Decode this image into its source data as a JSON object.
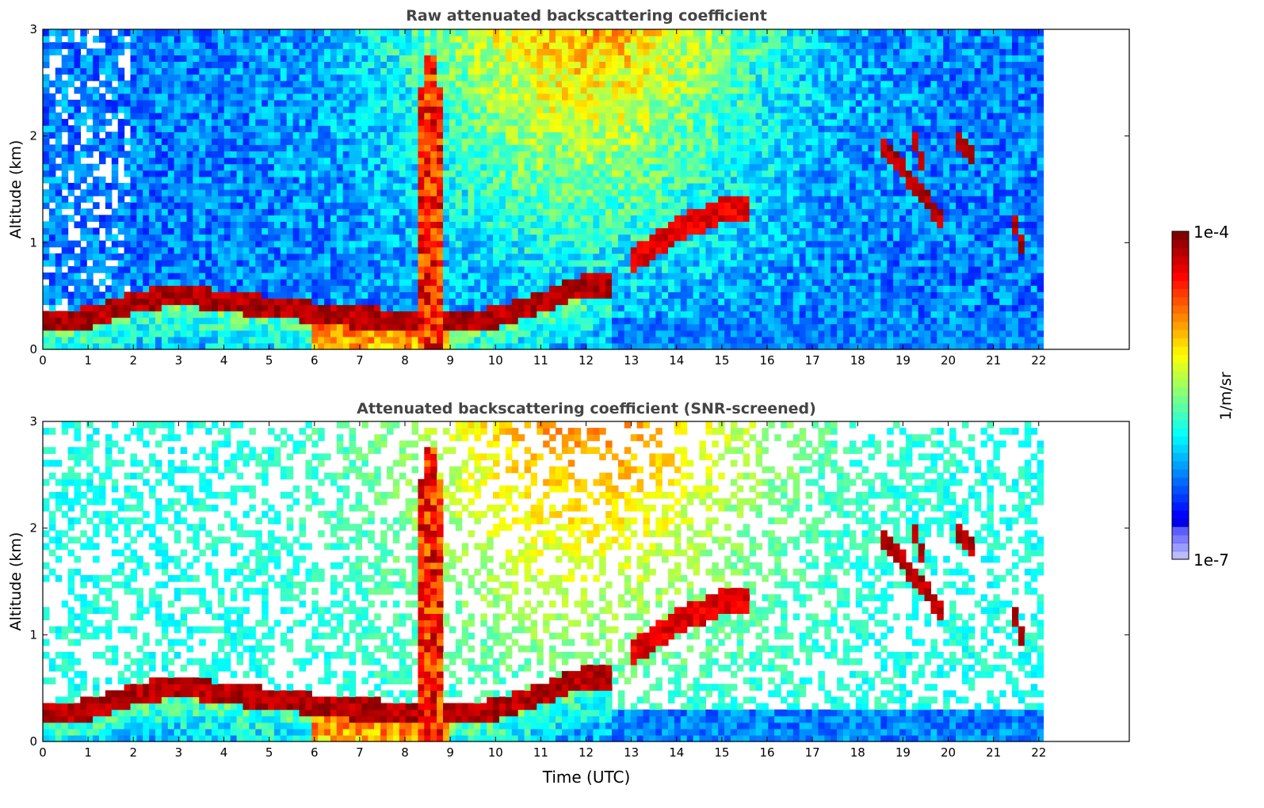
{
  "chart_data": [
    {
      "type": "heatmap",
      "title": "Raw attenuated backscattering coefficient",
      "ylabel": "Altitude (km)",
      "xlabel": "",
      "xlim": [
        0,
        24
      ],
      "ylim": [
        0,
        3
      ],
      "x_ticks": [
        "0",
        "1",
        "2",
        "3",
        "4",
        "5",
        "6",
        "7",
        "8",
        "9",
        "10",
        "11",
        "12",
        "13",
        "14",
        "15",
        "16",
        "17",
        "18",
        "19",
        "20",
        "21",
        "22"
      ],
      "y_ticks": [
        "0",
        "1",
        "2",
        "3"
      ],
      "data_extent_hours": [
        0,
        22.1
      ],
      "colorscale": "jet",
      "color_log_range": [
        -7,
        -4
      ],
      "features": {
        "boundary_layer_top_km": [
          [
            0,
            0.25
          ],
          [
            1,
            0.3
          ],
          [
            2,
            0.45
          ],
          [
            3,
            0.52
          ],
          [
            4,
            0.45
          ],
          [
            5,
            0.4
          ],
          [
            6,
            0.35
          ],
          [
            7,
            0.3
          ],
          [
            8,
            0.28
          ],
          [
            9,
            0.25
          ],
          [
            10,
            0.3
          ],
          [
            11,
            0.45
          ],
          [
            12,
            0.6
          ],
          [
            12.6,
            0.6
          ]
        ],
        "convective_plume": {
          "x_hours": [
            8.25,
            8.85
          ],
          "top_km": 2.8
        },
        "elevated_aerosol_layer": [
          [
            13.0,
            0.85
          ],
          [
            13.5,
            0.95
          ],
          [
            14.0,
            1.15
          ],
          [
            14.5,
            1.2
          ],
          [
            15.0,
            1.3
          ],
          [
            15.6,
            1.35
          ]
        ],
        "cloud_layers": [
          {
            "x_hours": [
              18.5,
              19.9
            ],
            "top_km": 2.05,
            "base_km": 1.1
          },
          {
            "x_hours": [
              19.2,
              19.5
            ],
            "top_km": 2.1,
            "base_km": 1.7
          },
          {
            "x_hours": [
              20.2,
              20.6
            ],
            "top_km": 2.05,
            "base_km": 1.8
          },
          {
            "x_hours": [
              21.45,
              21.65
            ],
            "top_km": 1.3,
            "base_km": 1.0
          }
        ]
      }
    },
    {
      "type": "heatmap",
      "title": "Attenuated backscattering coefficient (SNR-screened)",
      "ylabel": "Altitude (km)",
      "xlabel": "Time (UTC)",
      "xlim": [
        0,
        24
      ],
      "ylim": [
        0,
        3
      ],
      "x_ticks": [
        "0",
        "1",
        "2",
        "3",
        "4",
        "5",
        "6",
        "7",
        "8",
        "9",
        "10",
        "11",
        "12",
        "13",
        "14",
        "15",
        "16",
        "17",
        "18",
        "19",
        "20",
        "21",
        "22"
      ],
      "y_ticks": [
        "0",
        "1",
        "2",
        "3"
      ],
      "data_extent_hours": [
        0,
        22.1
      ],
      "colorscale": "jet",
      "color_log_range": [
        -7,
        -4
      ],
      "screened": true
    }
  ],
  "colorbar": {
    "label": "1/m/sr",
    "max_label": "1e-4",
    "min_label": "1e-7"
  },
  "colors": {
    "title": "#444444",
    "axis": "#000000",
    "background": "#ffffff"
  }
}
